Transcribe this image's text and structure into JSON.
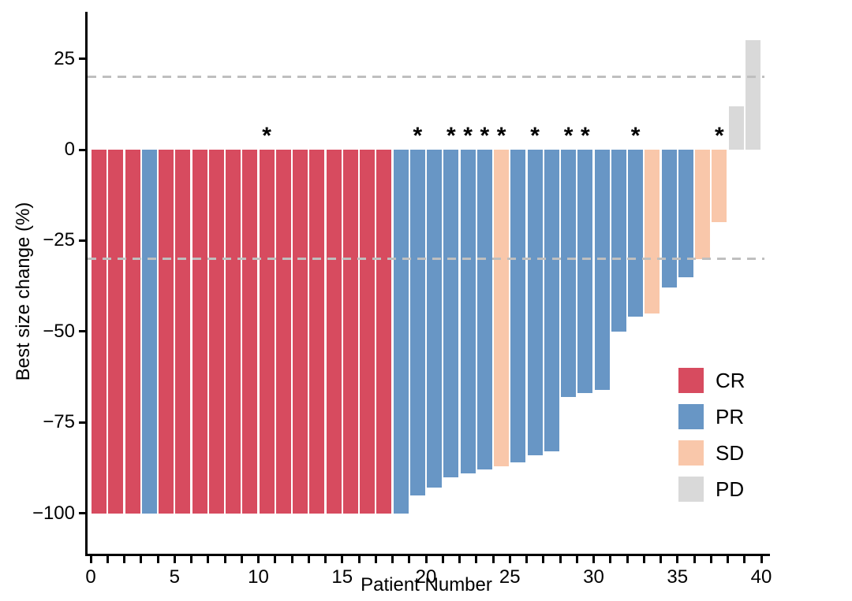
{
  "chart_data": {
    "type": "bar",
    "subtype": "waterfall",
    "title": "",
    "xlabel": "Patient Number",
    "ylabel": "Best size change (%)",
    "xlim": [
      0,
      40.7
    ],
    "ylim": [
      -111,
      38
    ],
    "grid": "off",
    "annotation_symbol": "*",
    "reference_lines": [
      {
        "id": "upper",
        "y": 20,
        "style": "dashed",
        "color": "#bfbfbf"
      },
      {
        "id": "lower",
        "y": -30,
        "style": "dashed",
        "color": "#bfbfbf"
      }
    ],
    "x_ticks": [
      {
        "v": 0,
        "label": "0"
      },
      {
        "v": 5,
        "label": "5"
      },
      {
        "v": 10,
        "label": "10"
      },
      {
        "v": 15,
        "label": "15"
      },
      {
        "v": 20,
        "label": "20"
      },
      {
        "v": 25,
        "label": "25"
      },
      {
        "v": 30,
        "label": "30"
      },
      {
        "v": 35,
        "label": "35"
      },
      {
        "v": 40,
        "label": "40"
      }
    ],
    "x_minor_ticks": {
      "from": 0,
      "to": 40,
      "step": 1
    },
    "y_ticks": [
      {
        "v": 25,
        "label": "25"
      },
      {
        "v": 0,
        "label": "0"
      },
      {
        "v": -25,
        "label": "−25"
      },
      {
        "v": -50,
        "label": "−50"
      },
      {
        "v": -75,
        "label": "−75"
      },
      {
        "v": -100,
        "label": "−100"
      }
    ],
    "colors": {
      "CR": "#d74b5f",
      "PR": "#6896c5",
      "SD": "#f9c7aa",
      "PD": "#d9d9d9"
    },
    "legend": {
      "position": "inside-right",
      "entries": [
        {
          "label": "CR",
          "color": "#d74b5f"
        },
        {
          "label": "PR",
          "color": "#6896c5"
        },
        {
          "label": "SD",
          "color": "#f9c7aa"
        },
        {
          "label": "PD",
          "color": "#d9d9d9"
        }
      ]
    },
    "patients": [
      {
        "patient": 1,
        "value": -100,
        "response": "CR",
        "flagged": false
      },
      {
        "patient": 2,
        "value": -100,
        "response": "CR",
        "flagged": false
      },
      {
        "patient": 3,
        "value": -100,
        "response": "CR",
        "flagged": false
      },
      {
        "patient": 4,
        "value": -100,
        "response": "PR",
        "flagged": false
      },
      {
        "patient": 5,
        "value": -100,
        "response": "CR",
        "flagged": false
      },
      {
        "patient": 6,
        "value": -100,
        "response": "CR",
        "flagged": false
      },
      {
        "patient": 7,
        "value": -100,
        "response": "CR",
        "flagged": false
      },
      {
        "patient": 8,
        "value": -100,
        "response": "CR",
        "flagged": false
      },
      {
        "patient": 9,
        "value": -100,
        "response": "CR",
        "flagged": false
      },
      {
        "patient": 10,
        "value": -100,
        "response": "CR",
        "flagged": false
      },
      {
        "patient": 11,
        "value": -100,
        "response": "CR",
        "flagged": true
      },
      {
        "patient": 12,
        "value": -100,
        "response": "CR",
        "flagged": false
      },
      {
        "patient": 13,
        "value": -100,
        "response": "CR",
        "flagged": false
      },
      {
        "patient": 14,
        "value": -100,
        "response": "CR",
        "flagged": false
      },
      {
        "patient": 15,
        "value": -100,
        "response": "CR",
        "flagged": false
      },
      {
        "patient": 16,
        "value": -100,
        "response": "CR",
        "flagged": false
      },
      {
        "patient": 17,
        "value": -100,
        "response": "CR",
        "flagged": false
      },
      {
        "patient": 18,
        "value": -100,
        "response": "CR",
        "flagged": false
      },
      {
        "patient": 19,
        "value": -100,
        "response": "PR",
        "flagged": false
      },
      {
        "patient": 20,
        "value": -95,
        "response": "PR",
        "flagged": true
      },
      {
        "patient": 21,
        "value": -93,
        "response": "PR",
        "flagged": false
      },
      {
        "patient": 22,
        "value": -90,
        "response": "PR",
        "flagged": true
      },
      {
        "patient": 23,
        "value": -89,
        "response": "PR",
        "flagged": true
      },
      {
        "patient": 24,
        "value": -88,
        "response": "PR",
        "flagged": true
      },
      {
        "patient": 25,
        "value": -87,
        "response": "SD",
        "flagged": true
      },
      {
        "patient": 26,
        "value": -86,
        "response": "PR",
        "flagged": false
      },
      {
        "patient": 27,
        "value": -84,
        "response": "PR",
        "flagged": true
      },
      {
        "patient": 28,
        "value": -83,
        "response": "PR",
        "flagged": false
      },
      {
        "patient": 29,
        "value": -68,
        "response": "PR",
        "flagged": true
      },
      {
        "patient": 30,
        "value": -67,
        "response": "PR",
        "flagged": true
      },
      {
        "patient": 31,
        "value": -66,
        "response": "PR",
        "flagged": false
      },
      {
        "patient": 32,
        "value": -50,
        "response": "PR",
        "flagged": false
      },
      {
        "patient": 33,
        "value": -46,
        "response": "PR",
        "flagged": true
      },
      {
        "patient": 34,
        "value": -45,
        "response": "SD",
        "flagged": false
      },
      {
        "patient": 35,
        "value": -38,
        "response": "PR",
        "flagged": false
      },
      {
        "patient": 36,
        "value": -35,
        "response": "PR",
        "flagged": false
      },
      {
        "patient": 37,
        "value": -30,
        "response": "SD",
        "flagged": false
      },
      {
        "patient": 38,
        "value": -20,
        "response": "SD",
        "flagged": true
      },
      {
        "patient": 39,
        "value": 12,
        "response": "PD",
        "flagged": false
      },
      {
        "patient": 40,
        "value": 30,
        "response": "PD",
        "flagged": false
      }
    ]
  }
}
